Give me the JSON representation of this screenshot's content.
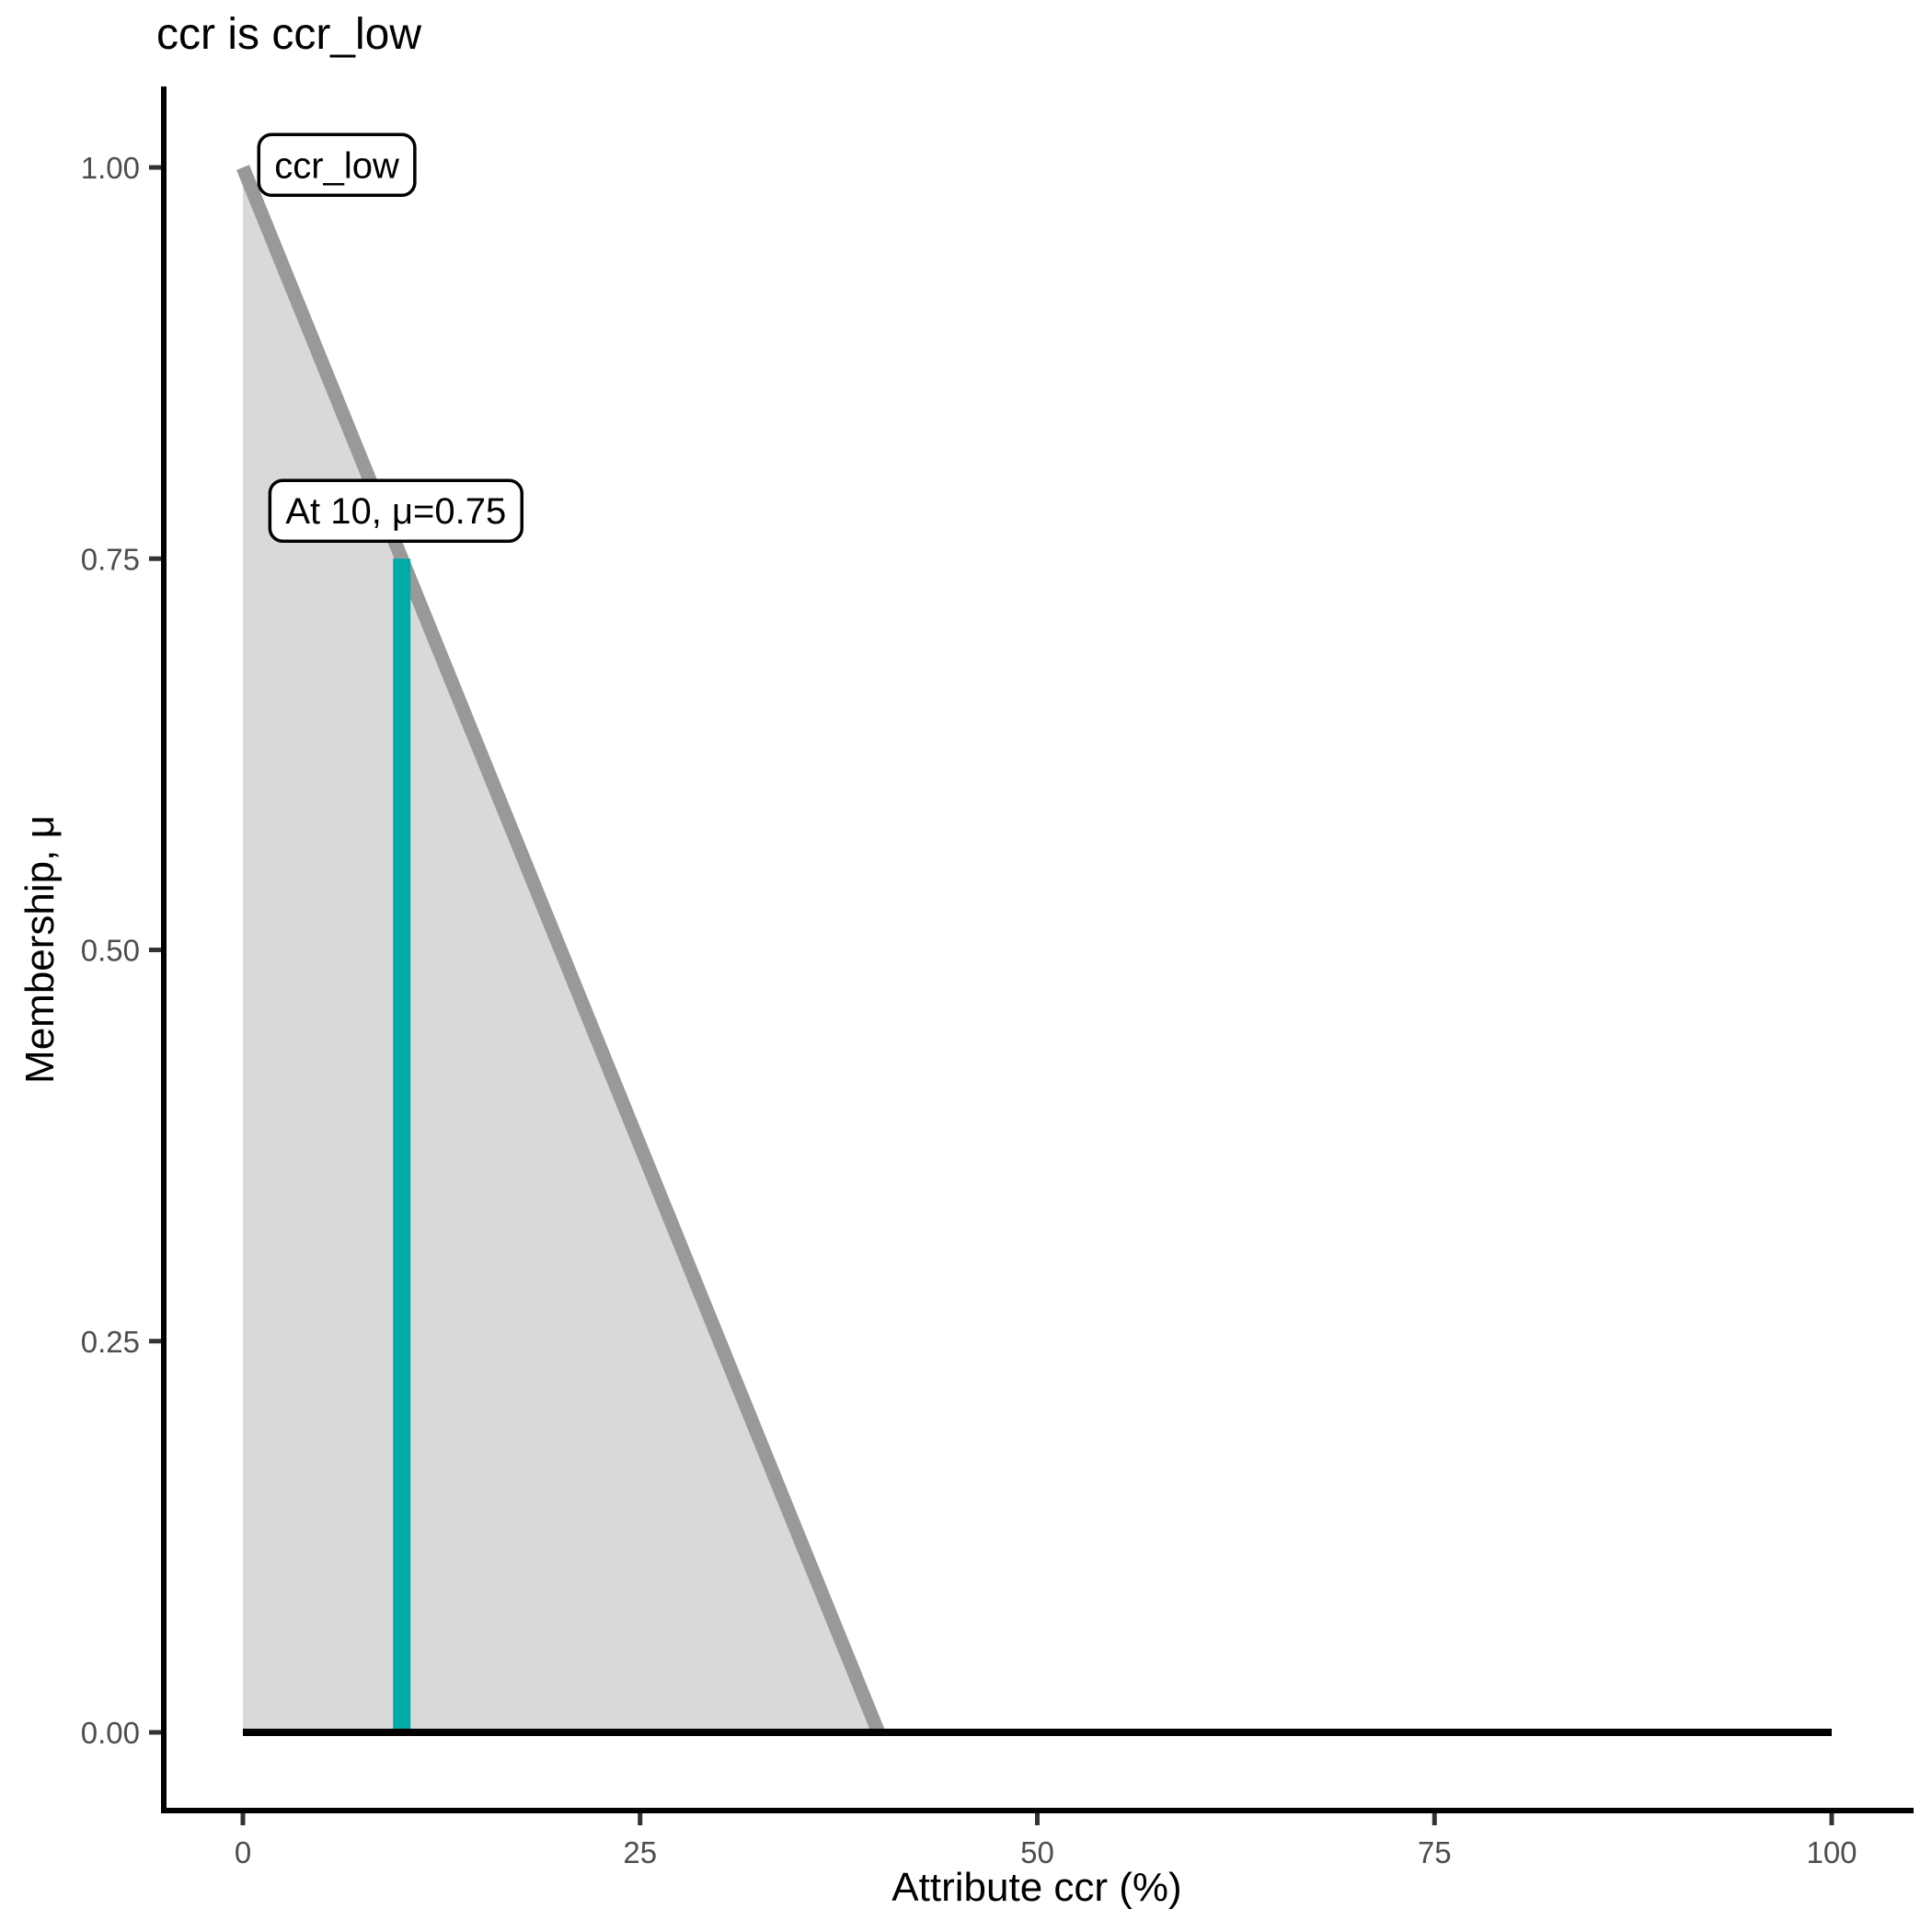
{
  "chart_data": {
    "type": "area",
    "title": "ccr is ccr_low",
    "xlabel": "Attribute ccr (%)",
    "ylabel": "Membership, μ",
    "xlim": [
      0,
      100
    ],
    "ylim": [
      0,
      1
    ],
    "grid": "off",
    "legend": "none",
    "x_ticks": [
      {
        "value": 0,
        "label": "0"
      },
      {
        "value": 25,
        "label": "25"
      },
      {
        "value": 50,
        "label": "50"
      },
      {
        "value": 75,
        "label": "75"
      },
      {
        "value": 100,
        "label": "100"
      }
    ],
    "y_ticks": [
      {
        "value": 0.0,
        "label": "0.00"
      },
      {
        "value": 0.25,
        "label": "0.25"
      },
      {
        "value": 0.5,
        "label": "0.50"
      },
      {
        "value": 0.75,
        "label": "0.75"
      },
      {
        "value": 1.0,
        "label": "1.00"
      }
    ],
    "membership_function": {
      "name": "ccr_low",
      "area_points": [
        [
          0,
          1
        ],
        [
          40,
          0
        ],
        [
          0,
          0
        ]
      ],
      "boundary_points": [
        [
          0,
          1
        ],
        [
          40,
          0
        ]
      ],
      "area_fill": "#D9D9D9",
      "boundary_color": "#999999"
    },
    "baseline": {
      "points": [
        [
          0,
          0
        ],
        [
          100,
          0
        ]
      ],
      "color": "#000000"
    },
    "evaluation": {
      "x": 10,
      "mu": 0.75,
      "points": [
        [
          10,
          0
        ],
        [
          10,
          0.75
        ]
      ],
      "color": "#00ABA6"
    },
    "annotations": [
      {
        "id": "set-label",
        "text": "ccr_low",
        "x": 1.0,
        "y": 1.021
      },
      {
        "id": "eval-label",
        "text": "At 10, μ=0.75",
        "x": 1.7,
        "y": 0.8
      }
    ],
    "axis_color": "#000000",
    "tick_color": "#333333",
    "tick_label_color": "#4D4D4D"
  }
}
